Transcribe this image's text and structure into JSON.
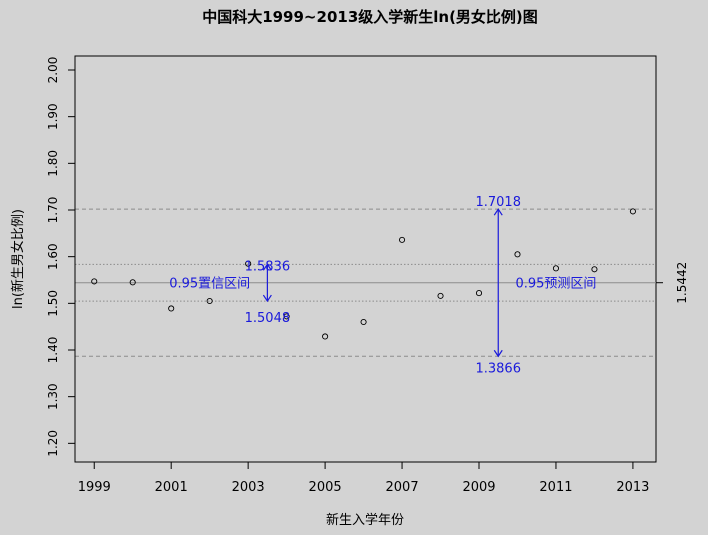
{
  "chart_data": {
    "type": "scatter",
    "title": "中国科大1999~2013级入学新生ln(男女比例)图",
    "xlabel": "新生入学年份",
    "ylabel": "ln(新生男女比例)",
    "xlim": [
      1998.5,
      2013.6
    ],
    "ylim": [
      1.16,
      2.03
    ],
    "x_ticks": [
      "1999",
      "2001",
      "2003",
      "2005",
      "2007",
      "2009",
      "2011",
      "2013"
    ],
    "y_ticks": [
      "1.20",
      "1.30",
      "1.40",
      "1.50",
      "1.60",
      "1.70",
      "1.80",
      "1.90",
      "2.00"
    ],
    "points": [
      {
        "x": 1999,
        "y": 1.547
      },
      {
        "x": 2000,
        "y": 1.545
      },
      {
        "x": 2001,
        "y": 1.489
      },
      {
        "x": 2002,
        "y": 1.505
      },
      {
        "x": 2003,
        "y": 1.585
      },
      {
        "x": 2004,
        "y": 1.472
      },
      {
        "x": 2005,
        "y": 1.429
      },
      {
        "x": 2006,
        "y": 1.46
      },
      {
        "x": 2007,
        "y": 1.636
      },
      {
        "x": 2008,
        "y": 1.516
      },
      {
        "x": 2009,
        "y": 1.522
      },
      {
        "x": 2010,
        "y": 1.605
      },
      {
        "x": 2011,
        "y": 1.575
      },
      {
        "x": 2012,
        "y": 1.573
      },
      {
        "x": 2013,
        "y": 1.697
      }
    ],
    "mean_line": {
      "value": 1.5442,
      "label": "1.5442"
    },
    "confidence_interval": {
      "lower": 1.5048,
      "upper": 1.5836,
      "lower_label": "1.5048",
      "upper_label": "1.5836",
      "label": "0.95置信区间",
      "x": 2003.5,
      "style": "dotted"
    },
    "prediction_interval": {
      "lower": 1.3866,
      "upper": 1.7018,
      "lower_label": "1.3866",
      "upper_label": "1.7018",
      "label": "0.95预测区间",
      "x": 2009.5,
      "style": "dashed"
    },
    "annotation_color": "#1a1adb",
    "grid": false
  }
}
